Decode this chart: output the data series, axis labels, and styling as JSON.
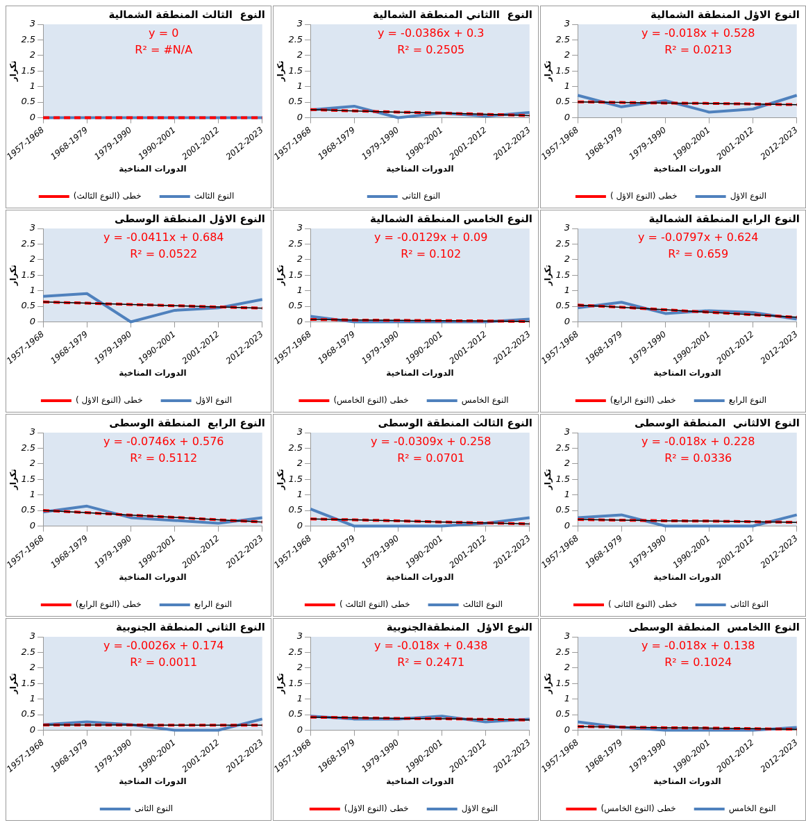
{
  "chart_data": [
    {
      "type": "line",
      "title": "النوع  الثالث المنطقة الشمالية",
      "xlabel": "الدورات المناخية",
      "ylabel": "تكرار",
      "categories": [
        "1957-1968",
        "1968-1979",
        "1979-1990",
        "1990-2001",
        "2001-2012",
        "2012-2023"
      ],
      "ylim": [
        0,
        3
      ],
      "yticks": [
        0,
        0.5,
        1,
        1.5,
        2,
        2.5,
        3
      ],
      "legend": "bottom",
      "marker": "none",
      "annotations": [
        "y = 0",
        "R² = #N/A"
      ],
      "series": [
        {
          "name": "النوع الثالث",
          "color": "#4f81bd",
          "line_style": "solid",
          "values": [
            0,
            0,
            0,
            0,
            0,
            0
          ]
        },
        {
          "name": "خطى (النوع الثالث)",
          "color": "#ff0000",
          "line_style": "dashed",
          "values": [
            0,
            0,
            0,
            0,
            0,
            0
          ]
        }
      ]
    },
    {
      "type": "line",
      "title": "النوع  االثاني المنطقة الشمالية",
      "xlabel": "الدورات المناخية",
      "ylabel": "تكرار",
      "categories": [
        "1957-1968",
        "1968-1979",
        "1979-1990",
        "1990-2001",
        "2001-2012",
        "2012-2023"
      ],
      "ylim": [
        0,
        3
      ],
      "yticks": [
        0,
        0.5,
        1,
        1.5,
        2,
        2.5,
        3
      ],
      "legend": "bottom",
      "marker": "none",
      "annotations": [
        "y = -0.0386x + 0.3",
        "R² = 0.2505"
      ],
      "series": [
        {
          "name": "النوع الثانى",
          "color": "#4f81bd",
          "line_style": "solid",
          "values": [
            0.25,
            0.37,
            0,
            0.15,
            0.05,
            0.17
          ]
        },
        {
          "color": "#ff0000",
          "line_style": "dashed",
          "values": [
            0.26,
            0.22,
            0.18,
            0.15,
            0.11,
            0.07
          ]
        },
        {
          "color": "#000000",
          "line_style": "solid",
          "values": [
            0.26,
            0.22,
            0.18,
            0.15,
            0.11,
            0.07
          ]
        }
      ]
    },
    {
      "type": "line",
      "title": "النوع الاؤل المنطقة الشمالية",
      "xlabel": "الدورات المناخية",
      "ylabel": "تكرار",
      "categories": [
        "1957-1968",
        "1968-1979",
        "1979-1990",
        "1990-2001",
        "2001-2012",
        "2012-2023"
      ],
      "ylim": [
        0,
        3
      ],
      "yticks": [
        0,
        0.5,
        1,
        1.5,
        2,
        2.5,
        3
      ],
      "legend": "bottom",
      "marker": "none",
      "annotations": [
        "y = -0.018x + 0.528",
        "R² = 0.0213"
      ],
      "series": [
        {
          "name": "النوع الاؤل",
          "color": "#4f81bd",
          "line_style": "solid",
          "values": [
            0.72,
            0.35,
            0.55,
            0.18,
            0.28,
            0.72
          ]
        },
        {
          "name": "خطى (النوع الاؤل )",
          "color": "#ff0000",
          "line_style": "dashed",
          "values": [
            0.51,
            0.49,
            0.47,
            0.46,
            0.44,
            0.42
          ]
        },
        {
          "color": "#000000",
          "line_style": "solid",
          "values": [
            0.51,
            0.49,
            0.47,
            0.46,
            0.44,
            0.42
          ]
        }
      ]
    },
    {
      "type": "line",
      "title": "النوع الاؤل المنطقة الوسطى",
      "xlabel": "الدورات المناخية",
      "ylabel": "تكرار",
      "categories": [
        "1957-1968",
        "1968-1979",
        "1979-1990",
        "1990-2001",
        "2001-2012",
        "2012-2023"
      ],
      "ylim": [
        0,
        3
      ],
      "yticks": [
        0,
        0.5,
        1,
        1.5,
        2,
        2.5,
        3
      ],
      "legend": "bottom",
      "marker": "none",
      "annotations": [
        "y = -0.0411x + 0.684",
        "R² = 0.0522"
      ],
      "series": [
        {
          "name": "النوع الاؤل",
          "color": "#4f81bd",
          "line_style": "solid",
          "values": [
            0.82,
            0.91,
            0,
            0.37,
            0.45,
            0.72
          ]
        },
        {
          "name": "خطى (النوع الاؤل )",
          "color": "#ff0000",
          "line_style": "dashed",
          "values": [
            0.64,
            0.6,
            0.56,
            0.52,
            0.48,
            0.44
          ]
        },
        {
          "color": "#000000",
          "line_style": "solid",
          "values": [
            0.64,
            0.6,
            0.56,
            0.52,
            0.48,
            0.44
          ]
        }
      ]
    },
    {
      "type": "line",
      "title": "النوع الخامس المنطقة الشمالية",
      "xlabel": "الدورات المناخية",
      "ylabel": "تكرار",
      "categories": [
        "1957-1968",
        "1968-1979",
        "1979-1990",
        "1990-2001",
        "2001-2012",
        "2012-2023"
      ],
      "ylim": [
        0,
        3
      ],
      "yticks": [
        0,
        0.5,
        1,
        1.5,
        2,
        2.5,
        3
      ],
      "legend": "bottom",
      "marker": "none",
      "annotations": [
        "y = -0.0129x + 0.09",
        "R² = 0.102"
      ],
      "series": [
        {
          "name": "النوع الخامس",
          "color": "#4f81bd",
          "line_style": "solid",
          "values": [
            0.18,
            0,
            0,
            0,
            0,
            0.09
          ]
        },
        {
          "name": "خطى (النوع الخامس)",
          "color": "#ff0000",
          "line_style": "dashed",
          "values": [
            0.08,
            0.06,
            0.05,
            0.04,
            0.03,
            0.01
          ]
        },
        {
          "color": "#000000",
          "line_style": "solid",
          "values": [
            0.08,
            0.06,
            0.05,
            0.04,
            0.03,
            0.01
          ]
        }
      ]
    },
    {
      "type": "line",
      "title": "النوع الرابع المنطقة الشمالية",
      "xlabel": "الدورات المناخية",
      "ylabel": "تكرار",
      "categories": [
        "1957-1968",
        "1968-1979",
        "1979-1990",
        "1990-2001",
        "2001-2012",
        "2012-2023"
      ],
      "ylim": [
        0,
        3
      ],
      "yticks": [
        0,
        0.5,
        1,
        1.5,
        2,
        2.5,
        3
      ],
      "legend": "bottom",
      "marker": "none",
      "annotations": [
        "y = -0.0797x + 0.624",
        "R² = 0.659"
      ],
      "series": [
        {
          "name": "النوع الرابع",
          "color": "#4f81bd",
          "line_style": "solid",
          "values": [
            0.45,
            0.63,
            0.27,
            0.36,
            0.3,
            0.09
          ]
        },
        {
          "name": "خطى (النوع الرابع)",
          "color": "#ff0000",
          "line_style": "dashed",
          "values": [
            0.54,
            0.47,
            0.39,
            0.31,
            0.23,
            0.15
          ]
        },
        {
          "color": "#000000",
          "line_style": "solid",
          "values": [
            0.54,
            0.47,
            0.39,
            0.31,
            0.23,
            0.15
          ]
        }
      ]
    },
    {
      "type": "line",
      "title": "النوع الرابع  المنطقة الوسطى",
      "xlabel": "الدورات المناخية",
      "ylabel": "تكرار",
      "categories": [
        "1957-1968",
        "1968-1979",
        "1979-1990",
        "1990-2001",
        "2001-2012",
        "2012-2023"
      ],
      "ylim": [
        0,
        3
      ],
      "yticks": [
        0,
        0.5,
        1,
        1.5,
        2,
        2.5,
        3
      ],
      "legend": "bottom",
      "marker": "none",
      "annotations": [
        "y = -0.0746x + 0.576",
        "R² = 0.5112"
      ],
      "series": [
        {
          "name": "النوع الرابع",
          "color": "#4f81bd",
          "line_style": "solid",
          "values": [
            0.45,
            0.64,
            0.27,
            0.18,
            0.09,
            0.27
          ]
        },
        {
          "name": "خطى (النوع الرابع)",
          "color": "#ff0000",
          "line_style": "dashed",
          "values": [
            0.5,
            0.43,
            0.35,
            0.28,
            0.2,
            0.13
          ]
        },
        {
          "color": "#000000",
          "line_style": "solid",
          "values": [
            0.5,
            0.43,
            0.35,
            0.28,
            0.2,
            0.13
          ]
        }
      ]
    },
    {
      "type": "line",
      "title": "النوع الثالث المنطقة الوسطى",
      "xlabel": "الدورات المناخية",
      "ylabel": "تكرار",
      "categories": [
        "1957-1968",
        "1968-1979",
        "1979-1990",
        "1990-2001",
        "2001-2012",
        "2012-2023"
      ],
      "ylim": [
        0,
        3
      ],
      "yticks": [
        0,
        0.5,
        1,
        1.5,
        2,
        2.5,
        3
      ],
      "legend": "bottom",
      "marker": "none",
      "annotations": [
        "y = -0.0309x + 0.258",
        "R² = 0.0701"
      ],
      "series": [
        {
          "name": "النوع الثالث",
          "color": "#4f81bd",
          "line_style": "solid",
          "values": [
            0.55,
            0,
            0,
            0,
            0.09,
            0.27
          ]
        },
        {
          "name": "خطى (النوع الثالث )",
          "color": "#ff0000",
          "line_style": "dashed",
          "values": [
            0.23,
            0.2,
            0.17,
            0.13,
            0.1,
            0.07
          ]
        },
        {
          "color": "#000000",
          "line_style": "solid",
          "values": [
            0.23,
            0.2,
            0.17,
            0.13,
            0.1,
            0.07
          ]
        }
      ]
    },
    {
      "type": "line",
      "title": "النوع الالثاني  المنطقة الوسطى",
      "xlabel": "الدورات المناخية",
      "ylabel": "تكرار",
      "categories": [
        "1957-1968",
        "1968-1979",
        "1979-1990",
        "1990-2001",
        "2001-2012",
        "2012-2023"
      ],
      "ylim": [
        0,
        3
      ],
      "yticks": [
        0,
        0.5,
        1,
        1.5,
        2,
        2.5,
        3
      ],
      "legend": "bottom",
      "marker": "none",
      "annotations": [
        "y = -0.018x + 0.228",
        "R² = 0.0336"
      ],
      "series": [
        {
          "name": "النوع الثانى",
          "color": "#4f81bd",
          "line_style": "solid",
          "values": [
            0.27,
            0.36,
            0,
            0,
            0,
            0.36
          ]
        },
        {
          "name": "خطى (النوع الثانى )",
          "color": "#ff0000",
          "line_style": "dashed",
          "values": [
            0.21,
            0.19,
            0.17,
            0.16,
            0.14,
            0.12
          ]
        },
        {
          "color": "#000000",
          "line_style": "solid",
          "values": [
            0.21,
            0.19,
            0.17,
            0.16,
            0.14,
            0.12
          ]
        }
      ]
    },
    {
      "type": "line",
      "title": "النوع الثاني المنطقة الجنوبية",
      "xlabel": "الدورات المناخية",
      "ylabel": "تكرار",
      "categories": [
        "1957-1968",
        "1968-1979",
        "1979-1990",
        "1990-2001",
        "2001-2012",
        "2012-2023"
      ],
      "ylim": [
        0,
        3
      ],
      "yticks": [
        0,
        0.5,
        1,
        1.5,
        2,
        2.5,
        3
      ],
      "legend": "bottom",
      "marker": "none",
      "annotations": [
        "y = -0.0026x + 0.174",
        "R² = 0.0011"
      ],
      "series": [
        {
          "name": "النوع الثانى",
          "color": "#4f81bd",
          "line_style": "solid",
          "values": [
            0.18,
            0.27,
            0.18,
            0,
            0,
            0.36
          ]
        },
        {
          "color": "#ff0000",
          "line_style": "dashed",
          "values": [
            0.17,
            0.17,
            0.17,
            0.16,
            0.16,
            0.16
          ]
        },
        {
          "color": "#000000",
          "line_style": "solid",
          "values": [
            0.17,
            0.17,
            0.17,
            0.16,
            0.16,
            0.16
          ]
        }
      ]
    },
    {
      "type": "line",
      "title": "النوع الاؤل  المنطقةالجنوبية",
      "xlabel": "الدورات المناخية",
      "ylabel": "تكرار",
      "categories": [
        "1957-1968",
        "1968-1979",
        "1979-1990",
        "1990-2001",
        "2001-2012",
        "2012-2023"
      ],
      "ylim": [
        0,
        3
      ],
      "yticks": [
        0,
        0.5,
        1,
        1.5,
        2,
        2.5,
        3
      ],
      "legend": "bottom",
      "marker": "none",
      "annotations": [
        "y = -0.018x + 0.438",
        "R² = 0.2471"
      ],
      "series": [
        {
          "name": "النوع الاؤل",
          "color": "#4f81bd",
          "line_style": "solid",
          "values": [
            0.45,
            0.36,
            0.36,
            0.45,
            0.27,
            0.36
          ]
        },
        {
          "name": "خطى (النوع الاؤل)",
          "color": "#ff0000",
          "line_style": "dashed",
          "values": [
            0.42,
            0.4,
            0.38,
            0.37,
            0.35,
            0.33
          ]
        },
        {
          "color": "#000000",
          "line_style": "solid",
          "values": [
            0.42,
            0.4,
            0.38,
            0.37,
            0.35,
            0.33
          ]
        }
      ]
    },
    {
      "type": "line",
      "title": "النوع االخامس  المنطقة الوسطى",
      "xlabel": "الدورات المناخية",
      "ylabel": "تكرار",
      "categories": [
        "1957-1968",
        "1968-1979",
        "1979-1990",
        "1990-2001",
        "2001-2012",
        "2012-2023"
      ],
      "ylim": [
        0,
        3
      ],
      "yticks": [
        0,
        0.5,
        1,
        1.5,
        2,
        2.5,
        3
      ],
      "legend": "bottom",
      "marker": "none",
      "annotations": [
        "y = -0.018x + 0.138",
        "R² = 0.1024"
      ],
      "series": [
        {
          "name": "النوع الخامس",
          "color": "#4f81bd",
          "line_style": "solid",
          "values": [
            0.27,
            0.09,
            0,
            0,
            0,
            0.09
          ]
        },
        {
          "name": "خطى (النوع الخامس)",
          "color": "#ff0000",
          "line_style": "dashed",
          "values": [
            0.12,
            0.1,
            0.08,
            0.07,
            0.05,
            0.03
          ]
        },
        {
          "color": "#000000",
          "line_style": "solid",
          "values": [
            0.12,
            0.1,
            0.08,
            0.07,
            0.05,
            0.03
          ]
        }
      ]
    }
  ]
}
